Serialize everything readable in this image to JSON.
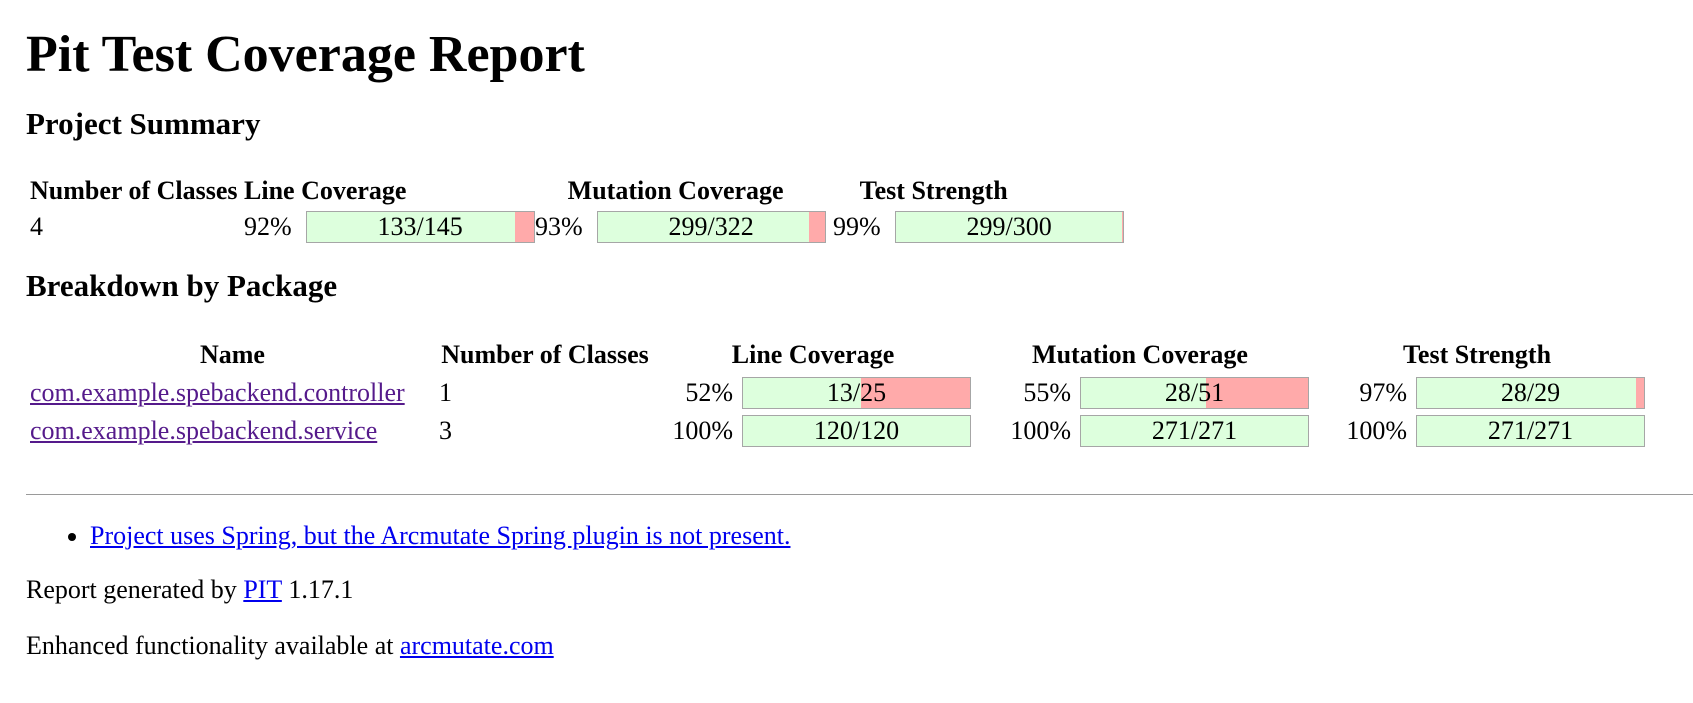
{
  "title": "Pit Test Coverage Report",
  "summary": {
    "heading": "Project Summary",
    "headers": {
      "classes": "Number of Classes",
      "line": "Line Coverage",
      "mutation": "Mutation Coverage",
      "strength": "Test Strength"
    },
    "classes": "4",
    "line": {
      "pct": "92%",
      "label": "133/145",
      "covered_fraction": 0.917
    },
    "mutation": {
      "pct": "93%",
      "label": "299/322",
      "covered_fraction": 0.929
    },
    "strength": {
      "pct": "99%",
      "label": "299/300",
      "covered_fraction": 0.997
    }
  },
  "breakdown": {
    "heading": "Breakdown by Package",
    "headers": {
      "name": "Name",
      "classes": "Number of Classes",
      "line": "Line Coverage",
      "mutation": "Mutation Coverage",
      "strength": "Test Strength"
    },
    "rows": [
      {
        "name": "com.example.spebackend.controller",
        "classes": "1",
        "line": {
          "pct": "52%",
          "label": "13/25",
          "covered_fraction": 0.52
        },
        "mutation": {
          "pct": "55%",
          "label": "28/51",
          "covered_fraction": 0.549
        },
        "strength": {
          "pct": "97%",
          "label": "28/29",
          "covered_fraction": 0.966
        }
      },
      {
        "name": "com.example.spebackend.service",
        "classes": "3",
        "line": {
          "pct": "100%",
          "label": "120/120",
          "covered_fraction": 1.0
        },
        "mutation": {
          "pct": "100%",
          "label": "271/271",
          "covered_fraction": 1.0
        },
        "strength": {
          "pct": "100%",
          "label": "271/271",
          "covered_fraction": 1.0
        }
      }
    ]
  },
  "notes": [
    "Project uses Spring, but the Arcmutate Spring plugin is not present."
  ],
  "footer": {
    "generated_prefix": "Report generated by ",
    "generated_link": "PIT",
    "generated_version": " 1.17.1",
    "enhanced_prefix": "Enhanced functionality available at ",
    "enhanced_link": "arcmutate.com"
  },
  "colors": {
    "covered": "#DDFFDD",
    "missed": "#FFAAAA",
    "link": "#0000EE",
    "visited_link": "#551A8B"
  }
}
